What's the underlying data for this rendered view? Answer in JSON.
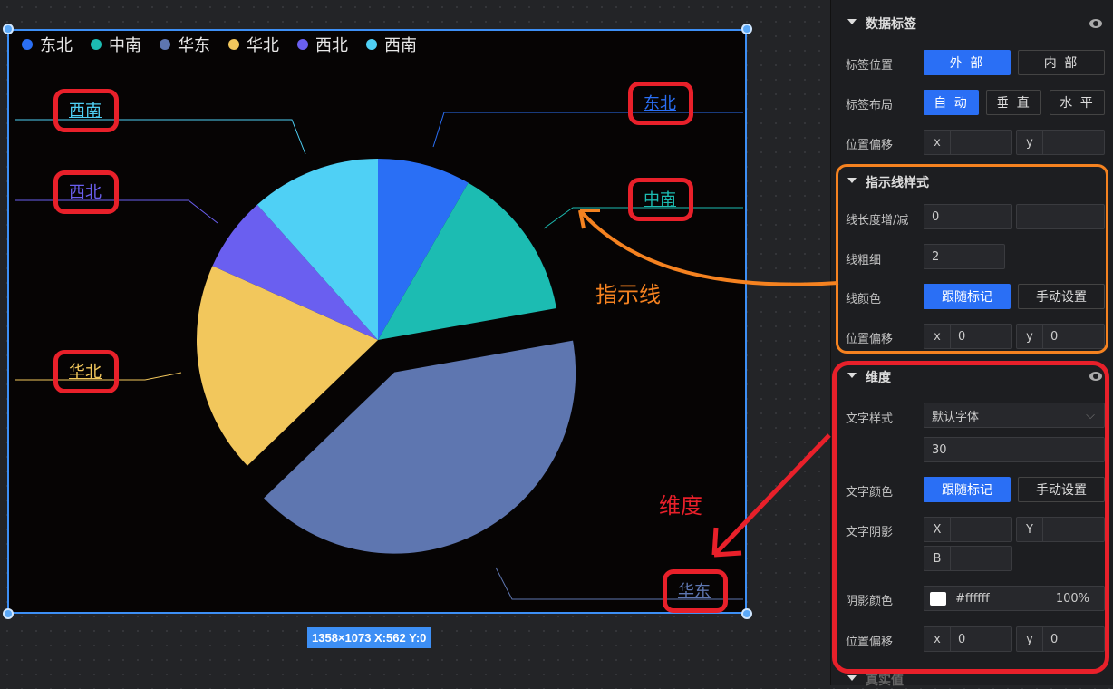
{
  "chart": {
    "legend": [
      {
        "name": "东北",
        "color": "#2a6ff5"
      },
      {
        "name": "中南",
        "color": "#1cbcb2"
      },
      {
        "name": "华东",
        "color": "#5e76b0"
      },
      {
        "name": "华北",
        "color": "#f2c75c"
      },
      {
        "name": "西北",
        "color": "#6a5ff0"
      },
      {
        "name": "西南",
        "color": "#4fd0f5"
      }
    ]
  },
  "chart_data": {
    "type": "pie",
    "categories": [
      "东北",
      "中南",
      "华东",
      "华北",
      "西北",
      "西南"
    ],
    "values": [
      8.3,
      13.9,
      40.6,
      18.9,
      6.7,
      11.6
    ],
    "exploded": "华东",
    "labels_position": "outside",
    "legend": "top-left"
  },
  "size_tag": "1358×1073   X:562 Y:0",
  "annotations": {
    "guide_line": "指示线",
    "dimension": "维度"
  },
  "panel": {
    "data_label": {
      "title": "数据标签",
      "position_label": "标签位置",
      "outside": "外 部",
      "inside": "内 部",
      "layout_label": "标签布局",
      "auto": "自 动",
      "vertical": "垂 直",
      "horizontal": "水 平",
      "offset_label": "位置偏移",
      "x": "x",
      "y": "y"
    },
    "guide": {
      "title": "指示线样式",
      "length_label": "线长度增/减",
      "length": "0",
      "width_label": "线粗细",
      "width": "2",
      "color_label": "线颜色",
      "follow": "跟随标记",
      "manual": "手动设置",
      "offset_label": "位置偏移",
      "x": "x",
      "x_val": "0",
      "y": "y",
      "y_val": "0"
    },
    "dimension": {
      "title": "维度",
      "font_label": "文字样式",
      "font": "默认字体",
      "size": "30",
      "color_label": "文字颜色",
      "follow": "跟随标记",
      "manual": "手动设置",
      "shadow_label": "文字阴影",
      "sx": "X",
      "sy": "Y",
      "sb": "B",
      "shadow_color_label": "阴影颜色",
      "shadow_color": "#ffffff",
      "opacity": "100%",
      "offset_label": "位置偏移",
      "x": "x",
      "x_val": "0",
      "y": "y",
      "y_val": "0"
    },
    "next": {
      "title": "真实值"
    }
  }
}
